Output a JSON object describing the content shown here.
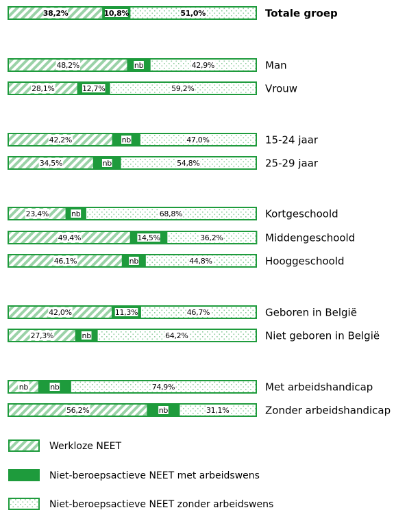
{
  "chart_data": {
    "type": "bar",
    "orientation": "horizontal",
    "stacked": true,
    "categories": [
      "Totale groep",
      "Man",
      "Vrouw",
      "15-24 jaar",
      "25-29 jaar",
      "Kortgeschoold",
      "Middengeschoold",
      "Hooggeschoold",
      "Geboren in België",
      "Niet geboren in België",
      "Met arbeidshandicap",
      "Zonder arbeidshandicap"
    ],
    "series": [
      {
        "name": "Werkloze NEET",
        "color": "#1e9b3c",
        "pattern": "hatch",
        "values": [
          38.2,
          48.2,
          28.1,
          42.2,
          34.5,
          23.4,
          49.4,
          46.1,
          42.0,
          27.3,
          12.4,
          56.2
        ],
        "value_labels": [
          "38,2%",
          "48,2%",
          "28,1%",
          "42,2%",
          "34,5%",
          "23,4%",
          "49,4%",
          "46,1%",
          "42,0%",
          "27,3%",
          "nb",
          "56,2%"
        ]
      },
      {
        "name": "Niet-beroepsactieve NEET met arbeidswens",
        "color": "#1e9b3c",
        "pattern": "solid",
        "values": [
          10.8,
          8.9,
          12.7,
          10.8,
          10.7,
          7.8,
          14.5,
          9.1,
          11.3,
          8.5,
          12.7,
          12.7
        ],
        "value_labels": [
          "10,8%",
          "nb",
          "12,7%",
          "nb",
          "nb",
          "nb",
          "14,5%",
          "nb",
          "11,3%",
          "nb",
          "nb",
          "nb"
        ]
      },
      {
        "name": "Niet-beroepsactieve NEET zonder arbeidswens",
        "color": "#1e9b3c",
        "pattern": "dots",
        "values": [
          51.0,
          42.9,
          59.2,
          47.0,
          54.8,
          68.8,
          36.2,
          44.8,
          46.7,
          64.2,
          74.9,
          31.1
        ],
        "value_labels": [
          "51,0%",
          "42,9%",
          "59,2%",
          "47,0%",
          "54,8%",
          "68,8%",
          "36,2%",
          "44,8%",
          "46,7%",
          "64,2%",
          "74,9%",
          "31,1%"
        ]
      }
    ]
  }
}
